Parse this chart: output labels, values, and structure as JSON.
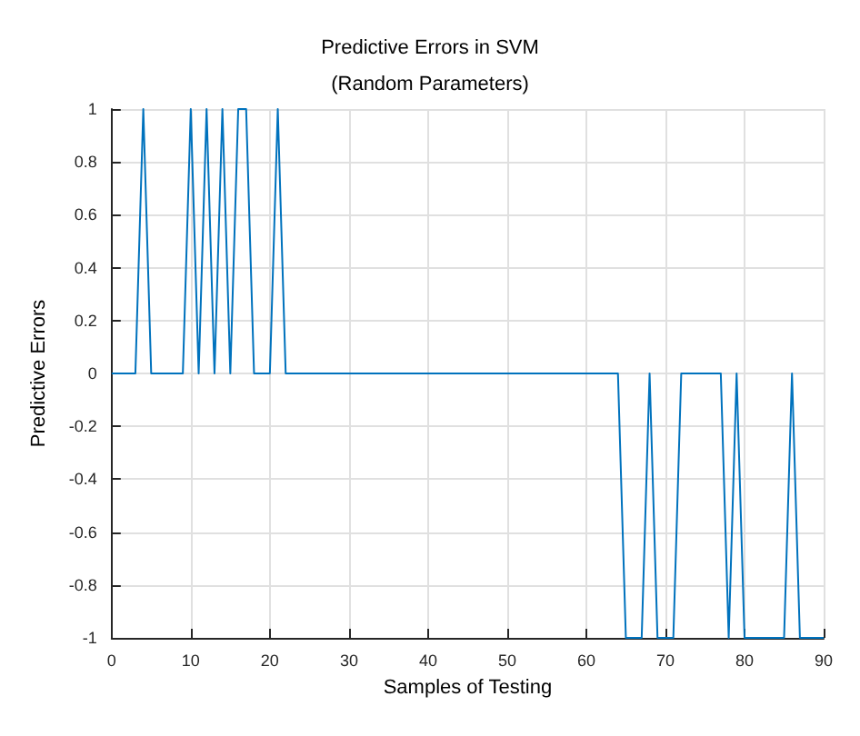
{
  "chart_data": {
    "type": "line",
    "title": "Predictive Errors in SVM",
    "subtitle": "(Random Parameters)",
    "xlabel": "Samples of Testing",
    "ylabel": "Predictive Errors",
    "x": [
      0,
      1,
      2,
      3,
      4,
      5,
      6,
      7,
      8,
      9,
      10,
      11,
      12,
      13,
      14,
      15,
      16,
      17,
      18,
      19,
      20,
      21,
      22,
      23,
      24,
      25,
      26,
      27,
      28,
      29,
      30,
      31,
      32,
      33,
      34,
      35,
      36,
      37,
      38,
      39,
      40,
      41,
      42,
      43,
      44,
      45,
      46,
      47,
      48,
      49,
      50,
      51,
      52,
      53,
      54,
      55,
      56,
      57,
      58,
      59,
      60,
      61,
      62,
      63,
      64,
      65,
      66,
      67,
      68,
      69,
      70,
      71,
      72,
      73,
      74,
      75,
      76,
      77,
      78,
      79,
      80,
      81,
      82,
      83,
      84,
      85,
      86,
      87,
      88,
      89,
      90
    ],
    "series": [
      {
        "color": "#0072bd",
        "values": [
          0,
          0,
          0,
          0,
          1,
          0,
          0,
          0,
          0,
          0,
          1,
          0,
          1,
          0,
          1,
          0,
          1,
          1,
          0,
          0,
          0,
          1,
          0,
          0,
          0,
          0,
          0,
          0,
          0,
          0,
          0,
          0,
          0,
          0,
          0,
          0,
          0,
          0,
          0,
          0,
          0,
          0,
          0,
          0,
          0,
          0,
          0,
          0,
          0,
          0,
          0,
          0,
          0,
          0,
          0,
          0,
          0,
          0,
          0,
          0,
          0,
          0,
          0,
          0,
          0,
          -1,
          -1,
          -1,
          0,
          -1,
          -1,
          -1,
          0,
          0,
          0,
          0,
          0,
          0,
          -1,
          0,
          -1,
          -1,
          -1,
          -1,
          -1,
          -1,
          0,
          -1,
          -1,
          -1,
          -1
        ]
      }
    ],
    "xlim": [
      0,
      90
    ],
    "xticks": [
      0,
      10,
      20,
      30,
      40,
      50,
      60,
      70,
      80,
      90
    ],
    "ylim": [
      -1,
      1
    ],
    "yticks": [
      -1,
      -0.8,
      -0.6,
      -0.4,
      -0.2,
      0,
      0.2,
      0.4,
      0.6,
      0.8,
      1
    ],
    "grid": true,
    "marker": "none",
    "line_style": "solid"
  }
}
